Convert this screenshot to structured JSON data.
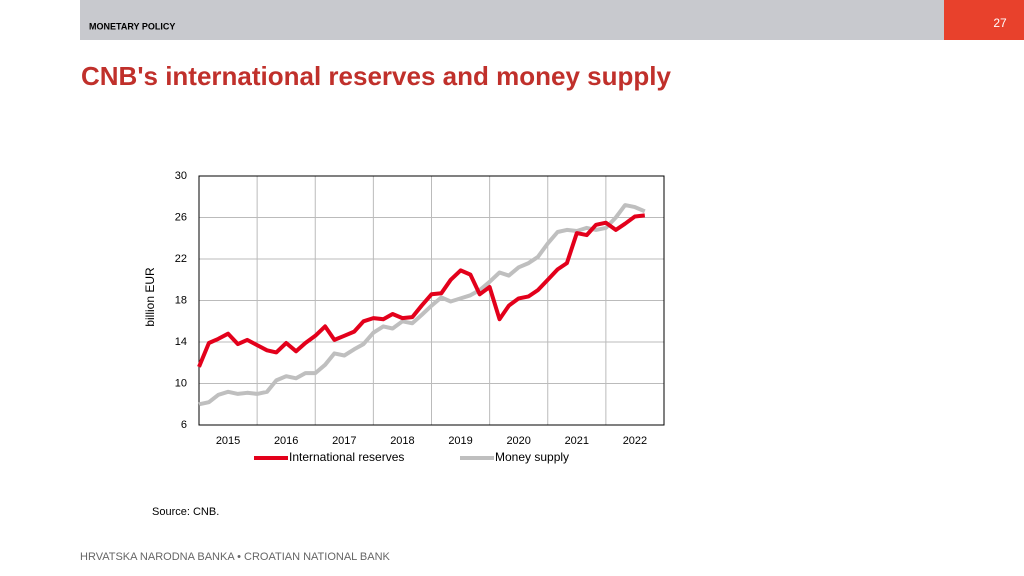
{
  "header": {
    "section": "MONETARY POLICY",
    "page": "27",
    "title": "CNB's international reserves and money supply"
  },
  "chart_data": {
    "type": "line",
    "ylabel": "billion EUR",
    "x": [
      2015,
      2015.17,
      2015.33,
      2015.5,
      2015.67,
      2015.83,
      2016,
      2016.17,
      2016.33,
      2016.5,
      2016.67,
      2016.83,
      2017,
      2017.17,
      2017.33,
      2017.5,
      2017.67,
      2017.83,
      2018,
      2018.17,
      2018.33,
      2018.5,
      2018.67,
      2018.83,
      2019,
      2019.17,
      2019.33,
      2019.5,
      2019.67,
      2019.83,
      2020,
      2020.17,
      2020.33,
      2020.5,
      2020.67,
      2020.83,
      2021,
      2021.17,
      2021.33,
      2021.5,
      2021.67,
      2021.83,
      2022,
      2022.17,
      2022.33,
      2022.5,
      2022.67
    ],
    "series": [
      {
        "name": "International reserves",
        "color": "#e3001b",
        "values": [
          11.6,
          13.9,
          14.3,
          14.8,
          13.8,
          14.2,
          13.7,
          13.2,
          13.0,
          13.9,
          13.1,
          13.9,
          14.6,
          15.5,
          14.2,
          14.6,
          15.0,
          16.0,
          16.3,
          16.2,
          16.7,
          16.3,
          16.4,
          17.5,
          18.6,
          18.7,
          20.0,
          20.9,
          20.5,
          18.6,
          19.3,
          16.2,
          17.5,
          18.2,
          18.4,
          19.0,
          20.0,
          21.0,
          21.6,
          24.5,
          24.3,
          25.3,
          25.5,
          24.8,
          25.4,
          26.1,
          26.2
        ]
      },
      {
        "name": "Money supply",
        "color": "#bfbfbf",
        "values": [
          8.0,
          8.2,
          8.9,
          9.2,
          9.0,
          9.1,
          9.0,
          9.2,
          10.3,
          10.7,
          10.5,
          11.0,
          11.0,
          11.8,
          12.9,
          12.7,
          13.3,
          13.8,
          14.9,
          15.5,
          15.3,
          16.0,
          15.8,
          16.6,
          17.5,
          18.3,
          17.9,
          18.2,
          18.5,
          19.0,
          19.8,
          20.7,
          20.4,
          21.2,
          21.6,
          22.2,
          23.5,
          24.6,
          24.8,
          24.7,
          25.0,
          24.8,
          25.0,
          26.0,
          27.2,
          27.0,
          26.6
        ]
      }
    ],
    "xlim": [
      2015,
      2023
    ],
    "xticks": [
      2015,
      2016,
      2017,
      2018,
      2019,
      2020,
      2021,
      2022
    ],
    "ylim": [
      6,
      30
    ],
    "yticks": [
      6,
      10,
      14,
      18,
      22,
      26,
      30
    ],
    "grid": true
  },
  "source": "Source: CNB.",
  "footer": "HRVATSKA NARODNA BANKA • CROATIAN NATIONAL BANK"
}
